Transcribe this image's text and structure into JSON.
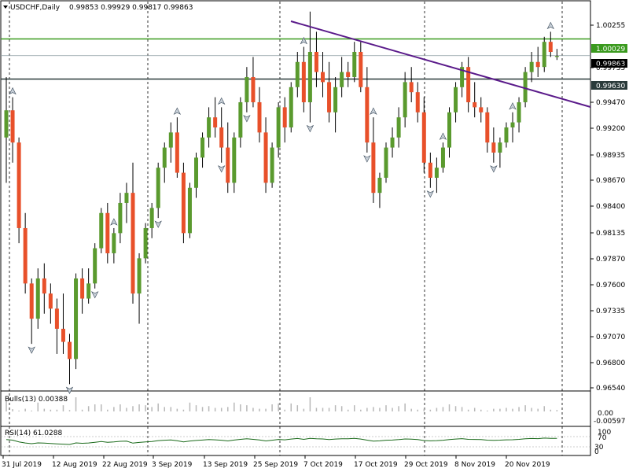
{
  "header": {
    "symbol": "USDCHF,Daily",
    "ohlc": "0.99853 0.99929 0.99817 0.99863"
  },
  "indicators": {
    "bulls_label": "Bulls(13) 0.00388",
    "rsi_label": "RSI(14) 61.0288",
    "bulls_ticks": [
      "0.00",
      "-0.00597"
    ],
    "rsi_ticks": [
      "100",
      "70",
      "30",
      "0"
    ]
  },
  "levels": {
    "resistance": "1.00029",
    "current": "0.99863",
    "support": "0.99630"
  },
  "colors": {
    "bull": "#5a9a2e",
    "bear": "#e8502a",
    "green_line": "#3a9a1e",
    "dark_line": "#2a3a3a",
    "trend": "#5a1a8a",
    "rsi": "#1a6a1a"
  },
  "chart_data": {
    "type": "candlestick",
    "title": "USDCHF,Daily",
    "ylim": [
      0.9654,
      1.004
    ],
    "y_ticks": [
      "1.00255",
      "0.99735",
      "0.99470",
      "0.99200",
      "0.98935",
      "0.98670",
      "0.98400",
      "0.98135",
      "0.97870",
      "0.97600",
      "0.97335",
      "0.97070",
      "0.96800",
      "0.96540"
    ],
    "x_ticks": [
      "31 Jul 2019",
      "12 Aug 2019",
      "22 Aug 2019",
      "3 Sep 2019",
      "13 Sep 2019",
      "25 Sep 2019",
      "7 Oct 2019",
      "17 Oct 2019",
      "29 Oct 2019",
      "8 Nov 2019",
      "20 Nov 2019"
    ],
    "candles": [
      [
        0.9905,
        0.9965,
        0.986,
        0.9932
      ],
      [
        0.9932,
        0.9945,
        0.988,
        0.99
      ],
      [
        0.99,
        0.9905,
        0.98,
        0.9815
      ],
      [
        0.9815,
        0.983,
        0.975,
        0.976
      ],
      [
        0.976,
        0.9765,
        0.97,
        0.9725
      ],
      [
        0.9725,
        0.9775,
        0.9715,
        0.9765
      ],
      [
        0.9765,
        0.978,
        0.973,
        0.975
      ],
      [
        0.975,
        0.976,
        0.972,
        0.9735
      ],
      [
        0.9735,
        0.9745,
        0.969,
        0.9715
      ],
      [
        0.9715,
        0.975,
        0.969,
        0.9702
      ],
      [
        0.9702,
        0.971,
        0.966,
        0.9685
      ],
      [
        0.9685,
        0.977,
        0.9675,
        0.9765
      ],
      [
        0.9765,
        0.9775,
        0.973,
        0.9745
      ],
      [
        0.9745,
        0.9775,
        0.974,
        0.976
      ],
      [
        0.976,
        0.98,
        0.9755,
        0.9795
      ],
      [
        0.9795,
        0.9835,
        0.979,
        0.983
      ],
      [
        0.983,
        0.984,
        0.978,
        0.979
      ],
      [
        0.979,
        0.9815,
        0.978,
        0.981
      ],
      [
        0.981,
        0.985,
        0.98,
        0.984
      ],
      [
        0.984,
        0.986,
        0.982,
        0.985
      ],
      [
        0.985,
        0.988,
        0.974,
        0.975
      ],
      [
        0.975,
        0.979,
        0.972,
        0.9785
      ],
      [
        0.9785,
        0.982,
        0.978,
        0.9815
      ],
      [
        0.9815,
        0.984,
        0.9805,
        0.9835
      ],
      [
        0.9835,
        0.988,
        0.9825,
        0.9875
      ],
      [
        0.9875,
        0.99,
        0.986,
        0.9895
      ],
      [
        0.9895,
        0.992,
        0.988,
        0.991
      ],
      [
        0.991,
        0.9925,
        0.9865,
        0.987
      ],
      [
        0.987,
        0.988,
        0.98,
        0.981
      ],
      [
        0.981,
        0.986,
        0.9805,
        0.9855
      ],
      [
        0.9855,
        0.989,
        0.9845,
        0.9885
      ],
      [
        0.9885,
        0.991,
        0.9875,
        0.9905
      ],
      [
        0.9905,
        0.9935,
        0.9895,
        0.9925
      ],
      [
        0.9925,
        0.9945,
        0.9905,
        0.9915
      ],
      [
        0.9915,
        0.9935,
        0.988,
        0.9895
      ],
      [
        0.9895,
        0.992,
        0.985,
        0.986
      ],
      [
        0.986,
        0.991,
        0.985,
        0.9905
      ],
      [
        0.9905,
        0.9945,
        0.9895,
        0.994
      ],
      [
        0.994,
        0.9975,
        0.993,
        0.9965
      ],
      [
        0.9965,
        0.9985,
        0.9935,
        0.994
      ],
      [
        0.994,
        0.9955,
        0.99,
        0.991
      ],
      [
        0.991,
        0.9925,
        0.985,
        0.986
      ],
      [
        0.986,
        0.99,
        0.9855,
        0.9895
      ],
      [
        0.9895,
        0.994,
        0.9885,
        0.9935
      ],
      [
        0.9935,
        0.9945,
        0.99,
        0.9915
      ],
      [
        0.9915,
        0.996,
        0.991,
        0.9955
      ],
      [
        0.9955,
        0.999,
        0.9945,
        0.998
      ],
      [
        0.998,
        0.9995,
        0.993,
        0.994
      ],
      [
        0.994,
        1.003,
        0.992,
        0.999
      ],
      [
        0.999,
        1.001,
        0.9955,
        0.997
      ],
      [
        0.997,
        0.999,
        0.9945,
        0.996
      ],
      [
        0.996,
        0.998,
        0.992,
        0.993
      ],
      [
        0.993,
        0.9965,
        0.991,
        0.9955
      ],
      [
        0.9955,
        0.9985,
        0.9945,
        0.997
      ],
      [
        0.997,
        0.998,
        0.9955,
        0.9965
      ],
      [
        0.9965,
        1.0,
        0.996,
        0.999
      ],
      [
        0.999,
        1.0,
        0.995,
        0.9955
      ],
      [
        0.9955,
        0.9975,
        0.989,
        0.99
      ],
      [
        0.99,
        0.9925,
        0.984,
        0.985
      ],
      [
        0.985,
        0.987,
        0.9835,
        0.9865
      ],
      [
        0.9865,
        0.99,
        0.986,
        0.9895
      ],
      [
        0.9895,
        0.9915,
        0.9885,
        0.9905
      ],
      [
        0.9905,
        0.9935,
        0.9895,
        0.9925
      ],
      [
        0.9925,
        0.997,
        0.9915,
        0.996
      ],
      [
        0.996,
        0.9975,
        0.994,
        0.995
      ],
      [
        0.995,
        0.996,
        0.992,
        0.993
      ],
      [
        0.993,
        0.9945,
        0.987,
        0.988
      ],
      [
        0.988,
        0.989,
        0.9855,
        0.9865
      ],
      [
        0.9865,
        0.9885,
        0.985,
        0.9875
      ],
      [
        0.9875,
        0.99,
        0.987,
        0.9895
      ],
      [
        0.9895,
        0.9935,
        0.9885,
        0.993
      ],
      [
        0.993,
        0.996,
        0.992,
        0.9955
      ],
      [
        0.9955,
        0.998,
        0.9945,
        0.9975
      ],
      [
        0.9975,
        0.9985,
        0.993,
        0.994
      ],
      [
        0.994,
        0.996,
        0.9925,
        0.9935
      ],
      [
        0.9935,
        0.9945,
        0.992,
        0.993
      ],
      [
        0.993,
        0.9935,
        0.989,
        0.99
      ],
      [
        0.99,
        0.9915,
        0.988,
        0.989
      ],
      [
        0.989,
        0.9905,
        0.9875,
        0.99
      ],
      [
        0.99,
        0.992,
        0.9895,
        0.9915
      ],
      [
        0.9915,
        0.993,
        0.99,
        0.992
      ],
      [
        0.992,
        0.9945,
        0.991,
        0.994
      ],
      [
        0.994,
        0.9975,
        0.9935,
        0.997
      ],
      [
        0.997,
        0.999,
        0.996,
        0.998
      ],
      [
        0.998,
        0.9995,
        0.9965,
        0.9975
      ],
      [
        0.9975,
        1.0005,
        0.997,
        1.0
      ],
      [
        1.0,
        1.001,
        0.9985,
        0.999
      ],
      [
        0.9985,
        0.9993,
        0.9982,
        0.9986
      ]
    ]
  }
}
